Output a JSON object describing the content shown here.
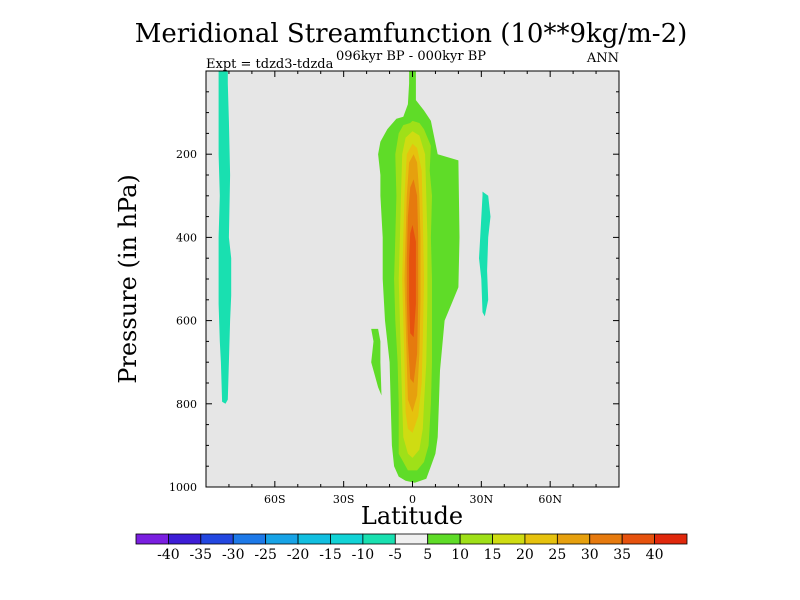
{
  "chart_data": {
    "type": "contour",
    "title": "Meridional Streamfunction (10**9kg/m-2)",
    "subtitle_center": "096kyr BP - 000kyr BP",
    "subtitle_left": "Expt = tdzd3-tdzda",
    "subtitle_right": "ANN",
    "xlabel": "Latitude",
    "ylabel": "Pressure (in hPa)",
    "xlim": [
      -90,
      90
    ],
    "ylim": [
      0,
      1000
    ],
    "y_inverted": true,
    "x_ticks": [
      {
        "value": -60,
        "label": "60S"
      },
      {
        "value": -30,
        "label": "30S"
      },
      {
        "value": 0,
        "label": "0"
      },
      {
        "value": 30,
        "label": "30N"
      },
      {
        "value": 60,
        "label": "60N"
      }
    ],
    "y_ticks": [
      {
        "value": 200,
        "label": "200"
      },
      {
        "value": 400,
        "label": "400"
      },
      {
        "value": 600,
        "label": "600"
      },
      {
        "value": 800,
        "label": "800"
      },
      {
        "value": 1000,
        "label": "1000"
      }
    ],
    "background_color": "#e6e6e6",
    "colorbar": {
      "levels": [
        -40,
        -35,
        -30,
        -25,
        -20,
        -15,
        -10,
        -5,
        5,
        10,
        15,
        20,
        25,
        30,
        35,
        40
      ],
      "labels": [
        "-40",
        "-35",
        "-30",
        "-25",
        "-20",
        "-15",
        "-10",
        "-5",
        "5",
        "10",
        "15",
        "20",
        "25",
        "30",
        "35",
        "40"
      ],
      "colors": [
        "#7a1fe0",
        "#3d1dd6",
        "#2347e0",
        "#1d79e8",
        "#17a3e6",
        "#12bfe0",
        "#12d3d6",
        "#19e0b0",
        "#f0f0f0",
        "#5fdc28",
        "#9fe018",
        "#cfdc12",
        "#e6c20e",
        "#e6a00e",
        "#e67a0e",
        "#e6520e",
        "#e0280c"
      ]
    },
    "regions": [
      {
        "name": "sh-negative-band",
        "level": "-10 to -5",
        "color": "#19e0b0",
        "outline": [
          [
            -84.5,
            0
          ],
          [
            -80.5,
            0
          ],
          [
            -80.5,
            30
          ],
          [
            -80,
            120
          ],
          [
            -79.5,
            250
          ],
          [
            -80,
            400
          ],
          [
            -79,
            450
          ],
          [
            -79,
            540
          ],
          [
            -79.5,
            600
          ],
          [
            -80,
            700
          ],
          [
            -80.5,
            790
          ],
          [
            -81.5,
            800
          ],
          [
            -83,
            795
          ],
          [
            -83.5,
            700
          ],
          [
            -84,
            650
          ],
          [
            -84.5,
            560
          ],
          [
            -84.5,
            400
          ],
          [
            -84,
            300
          ],
          [
            -84.5,
            200
          ],
          [
            -84.5,
            30
          ]
        ]
      },
      {
        "name": "nh-negative-band",
        "level": "-10 to -5",
        "color": "#19e0b0",
        "outline": [
          [
            30.5,
            290
          ],
          [
            33,
            300
          ],
          [
            34,
            350
          ],
          [
            33,
            400
          ],
          [
            32.5,
            480
          ],
          [
            33,
            550
          ],
          [
            31.5,
            590
          ],
          [
            30.5,
            580
          ],
          [
            30,
            500
          ],
          [
            29,
            450
          ],
          [
            29.5,
            400
          ],
          [
            30.5,
            300
          ]
        ]
      },
      {
        "name": "sh-small-positive-blob",
        "level": "5 to 10",
        "color": "#5fdc28",
        "outline": [
          [
            -18,
            620
          ],
          [
            -15,
            620
          ],
          [
            -14,
            650
          ],
          [
            -14,
            700
          ],
          [
            -13.5,
            780
          ],
          [
            -15,
            760
          ],
          [
            -18,
            700
          ],
          [
            -17,
            650
          ]
        ]
      },
      {
        "name": "main-cell-5",
        "level": "5 to 10",
        "color": "#5fdc28",
        "outline": [
          [
            -1.5,
            0
          ],
          [
            1.5,
            0
          ],
          [
            1.5,
            70
          ],
          [
            5,
            95
          ],
          [
            8,
            120
          ],
          [
            9.5,
            160
          ],
          [
            11,
            200
          ],
          [
            20,
            215
          ],
          [
            20.5,
            400
          ],
          [
            20,
            520
          ],
          [
            17,
            560
          ],
          [
            14,
            600
          ],
          [
            13,
            660
          ],
          [
            12,
            720
          ],
          [
            11.5,
            800
          ],
          [
            11,
            880
          ],
          [
            10,
            920
          ],
          [
            8,
            950
          ],
          [
            6,
            980
          ],
          [
            1,
            990
          ],
          [
            -3,
            985
          ],
          [
            -6,
            975
          ],
          [
            -8,
            950
          ],
          [
            -9,
            900
          ],
          [
            -9.5,
            800
          ],
          [
            -10,
            700
          ],
          [
            -12,
            600
          ],
          [
            -13,
            500
          ],
          [
            -13,
            400
          ],
          [
            -14,
            300
          ],
          [
            -14,
            250
          ],
          [
            -15,
            200
          ],
          [
            -14,
            170
          ],
          [
            -11,
            140
          ],
          [
            -7,
            115
          ],
          [
            -4,
            110
          ],
          [
            -2,
            80
          ],
          [
            -1.5,
            30
          ]
        ]
      },
      {
        "name": "main-cell-10",
        "level": "10 to 15",
        "color": "#9fe018",
        "outline": [
          [
            0,
            120
          ],
          [
            3,
            125
          ],
          [
            5,
            140
          ],
          [
            8,
            180
          ],
          [
            7.5,
            240
          ],
          [
            8.5,
            300
          ],
          [
            8,
            400
          ],
          [
            8.5,
            500
          ],
          [
            8.5,
            700
          ],
          [
            8,
            800
          ],
          [
            7,
            900
          ],
          [
            5,
            940
          ],
          [
            2,
            960
          ],
          [
            -2,
            960
          ],
          [
            -4,
            940
          ],
          [
            -6,
            920
          ],
          [
            -6,
            800
          ],
          [
            -6.5,
            700
          ],
          [
            -7.5,
            600
          ],
          [
            -8,
            500
          ],
          [
            -7.5,
            400
          ],
          [
            -7,
            300
          ],
          [
            -7.5,
            200
          ],
          [
            -6,
            150
          ],
          [
            -4,
            130
          ],
          [
            -1,
            125
          ]
        ]
      },
      {
        "name": "main-cell-15",
        "level": "15 to 20",
        "color": "#cfdc12",
        "outline": [
          [
            0,
            145
          ],
          [
            3,
            155
          ],
          [
            5.5,
            200
          ],
          [
            6,
            300
          ],
          [
            6.5,
            400
          ],
          [
            6.5,
            550
          ],
          [
            6,
            700
          ],
          [
            5,
            800
          ],
          [
            4.5,
            860
          ],
          [
            3,
            910
          ],
          [
            0,
            930
          ],
          [
            -2,
            920
          ],
          [
            -4,
            880
          ],
          [
            -4.5,
            800
          ],
          [
            -5,
            700
          ],
          [
            -5.5,
            600
          ],
          [
            -6,
            500
          ],
          [
            -5.5,
            400
          ],
          [
            -5,
            300
          ],
          [
            -4.5,
            200
          ],
          [
            -3,
            160
          ]
        ]
      },
      {
        "name": "main-cell-20",
        "level": "20 to 25",
        "color": "#e6c20e",
        "outline": [
          [
            0,
            175
          ],
          [
            2,
            185
          ],
          [
            4,
            240
          ],
          [
            4.5,
            350
          ],
          [
            5,
            500
          ],
          [
            4.5,
            650
          ],
          [
            4,
            750
          ],
          [
            2.5,
            830
          ],
          [
            0,
            870
          ],
          [
            -2,
            860
          ],
          [
            -3,
            820
          ],
          [
            -3.5,
            700
          ],
          [
            -4,
            600
          ],
          [
            -4.5,
            500
          ],
          [
            -4,
            400
          ],
          [
            -3.5,
            300
          ],
          [
            -2.5,
            200
          ]
        ]
      },
      {
        "name": "main-cell-25",
        "level": "25 to 30",
        "color": "#e6a00e",
        "outline": [
          [
            0.5,
            200
          ],
          [
            2,
            220
          ],
          [
            3,
            300
          ],
          [
            3.5,
            400
          ],
          [
            3.5,
            550
          ],
          [
            3,
            680
          ],
          [
            2,
            780
          ],
          [
            0,
            820
          ],
          [
            -2,
            790
          ],
          [
            -2.5,
            700
          ],
          [
            -3,
            600
          ],
          [
            -3.5,
            500
          ],
          [
            -3,
            400
          ],
          [
            -2.5,
            300
          ],
          [
            -1.5,
            220
          ]
        ]
      },
      {
        "name": "main-cell-30",
        "level": "30 to 35",
        "color": "#e67a0e",
        "outline": [
          [
            0.5,
            260
          ],
          [
            2,
            300
          ],
          [
            2.5,
            400
          ],
          [
            2.5,
            550
          ],
          [
            2,
            680
          ],
          [
            0.5,
            750
          ],
          [
            -1,
            740
          ],
          [
            -2,
            650
          ],
          [
            -2.5,
            550
          ],
          [
            -2.5,
            450
          ],
          [
            -2,
            350
          ],
          [
            -1,
            280
          ]
        ]
      },
      {
        "name": "main-cell-35",
        "level": "35 to 40",
        "color": "#e6520e",
        "outline": [
          [
            0,
            370
          ],
          [
            1.5,
            410
          ],
          [
            1.5,
            560
          ],
          [
            0.5,
            640
          ],
          [
            -1,
            630
          ],
          [
            -1.5,
            550
          ],
          [
            -1.5,
            450
          ],
          [
            -1,
            390
          ]
        ]
      }
    ]
  }
}
